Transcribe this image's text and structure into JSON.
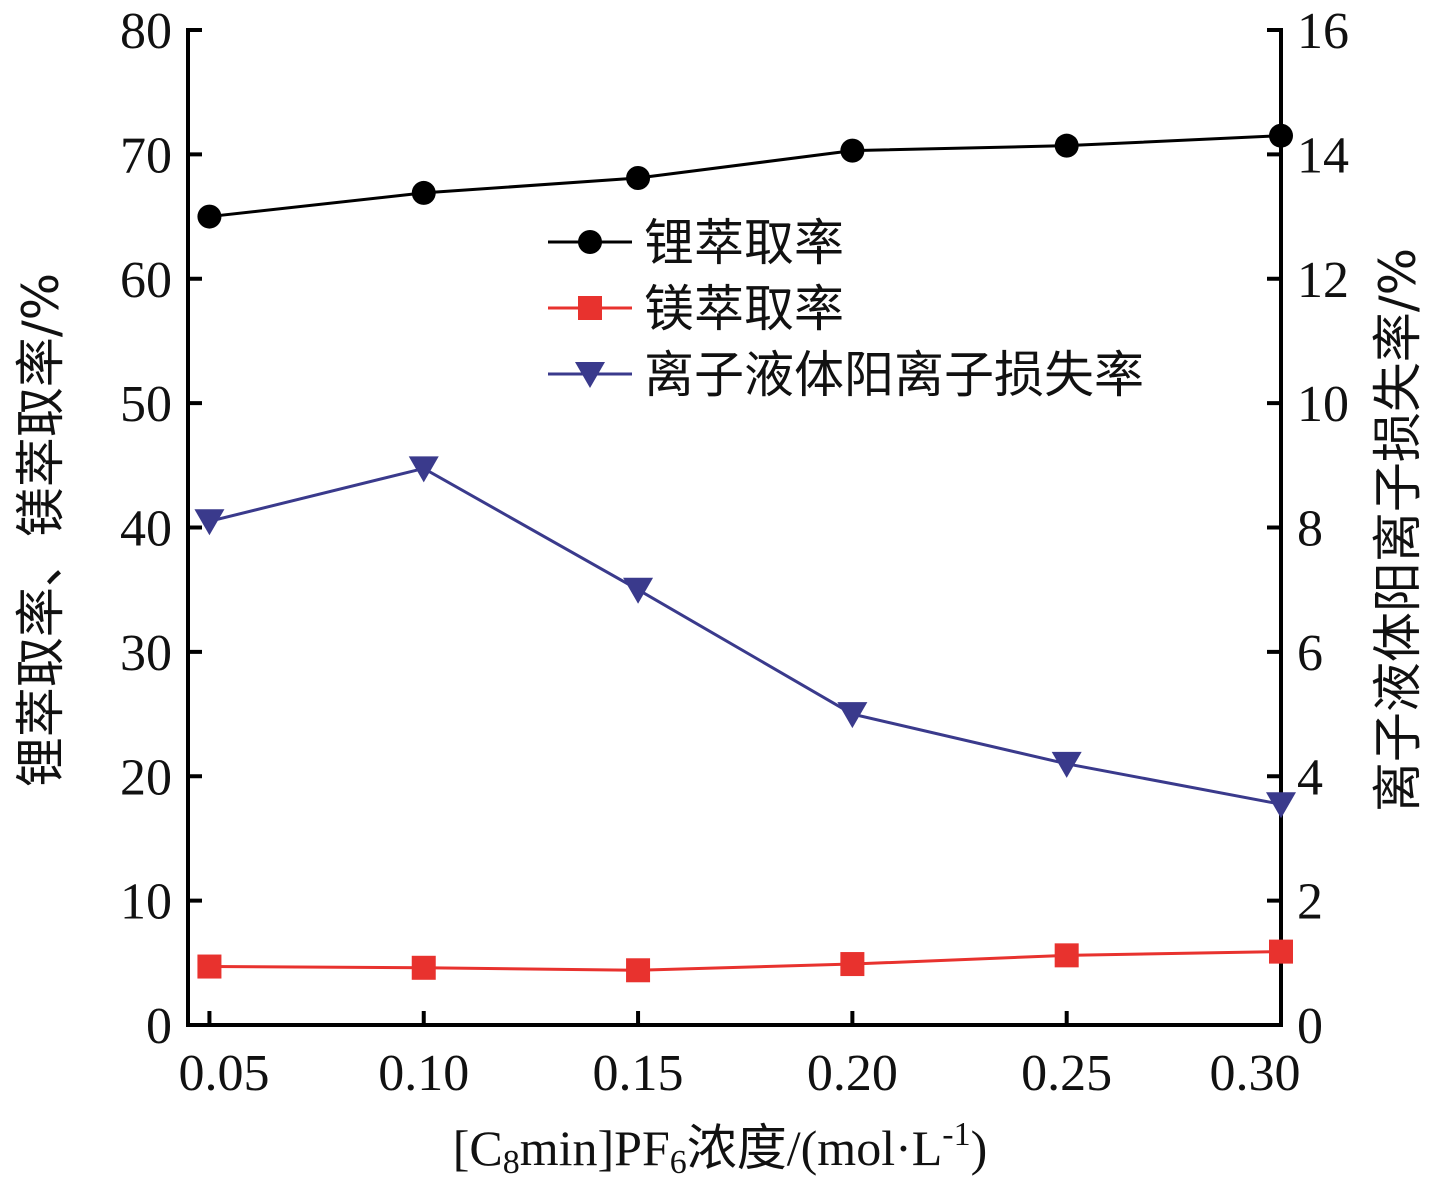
{
  "chart_data": {
    "type": "line",
    "x": [
      0.05,
      0.1,
      0.15,
      0.2,
      0.25,
      0.3
    ],
    "x_tick_labels": [
      "0.05",
      "0.10",
      "0.15",
      "0.20",
      "0.25",
      "0.30"
    ],
    "xlim": [
      0.045,
      0.3
    ],
    "ylim_left": [
      0,
      80
    ],
    "ylim_right": [
      0,
      16
    ],
    "left_ticks": [
      "0",
      "10",
      "20",
      "30",
      "40",
      "50",
      "60",
      "70",
      "80"
    ],
    "right_ticks": [
      "0",
      "2",
      "4",
      "6",
      "8",
      "10",
      "12",
      "14",
      "16"
    ],
    "xlabel": {
      "prefix": "[C",
      "sub1": "8",
      "mid": "min]PF",
      "sub2": "6",
      "cn": "浓度",
      "unit_open": "/(mol·L",
      "sup": "-1",
      "unit_close": ")"
    },
    "ylabel_left": "锂萃取率、镁萃取率/%",
    "ylabel_right": "离子液体阳离子损失率/%",
    "legend_position": "upper-center",
    "grid": false,
    "series": [
      {
        "name": "锂萃取率",
        "axis": "left",
        "marker": "circle",
        "color": "#000000",
        "values": [
          65.0,
          66.9,
          68.1,
          70.3,
          70.7,
          71.5
        ]
      },
      {
        "name": "镁萃取率",
        "axis": "left",
        "marker": "square",
        "color": "#e8322e",
        "values": [
          4.7,
          4.6,
          4.4,
          4.9,
          5.6,
          5.9
        ]
      },
      {
        "name": "离子液体阳离子损失率",
        "axis": "right",
        "marker": "triangle-down",
        "color": "#3a3a8c",
        "values": [
          8.1,
          8.95,
          7.0,
          5.0,
          4.2,
          3.55
        ]
      }
    ]
  }
}
